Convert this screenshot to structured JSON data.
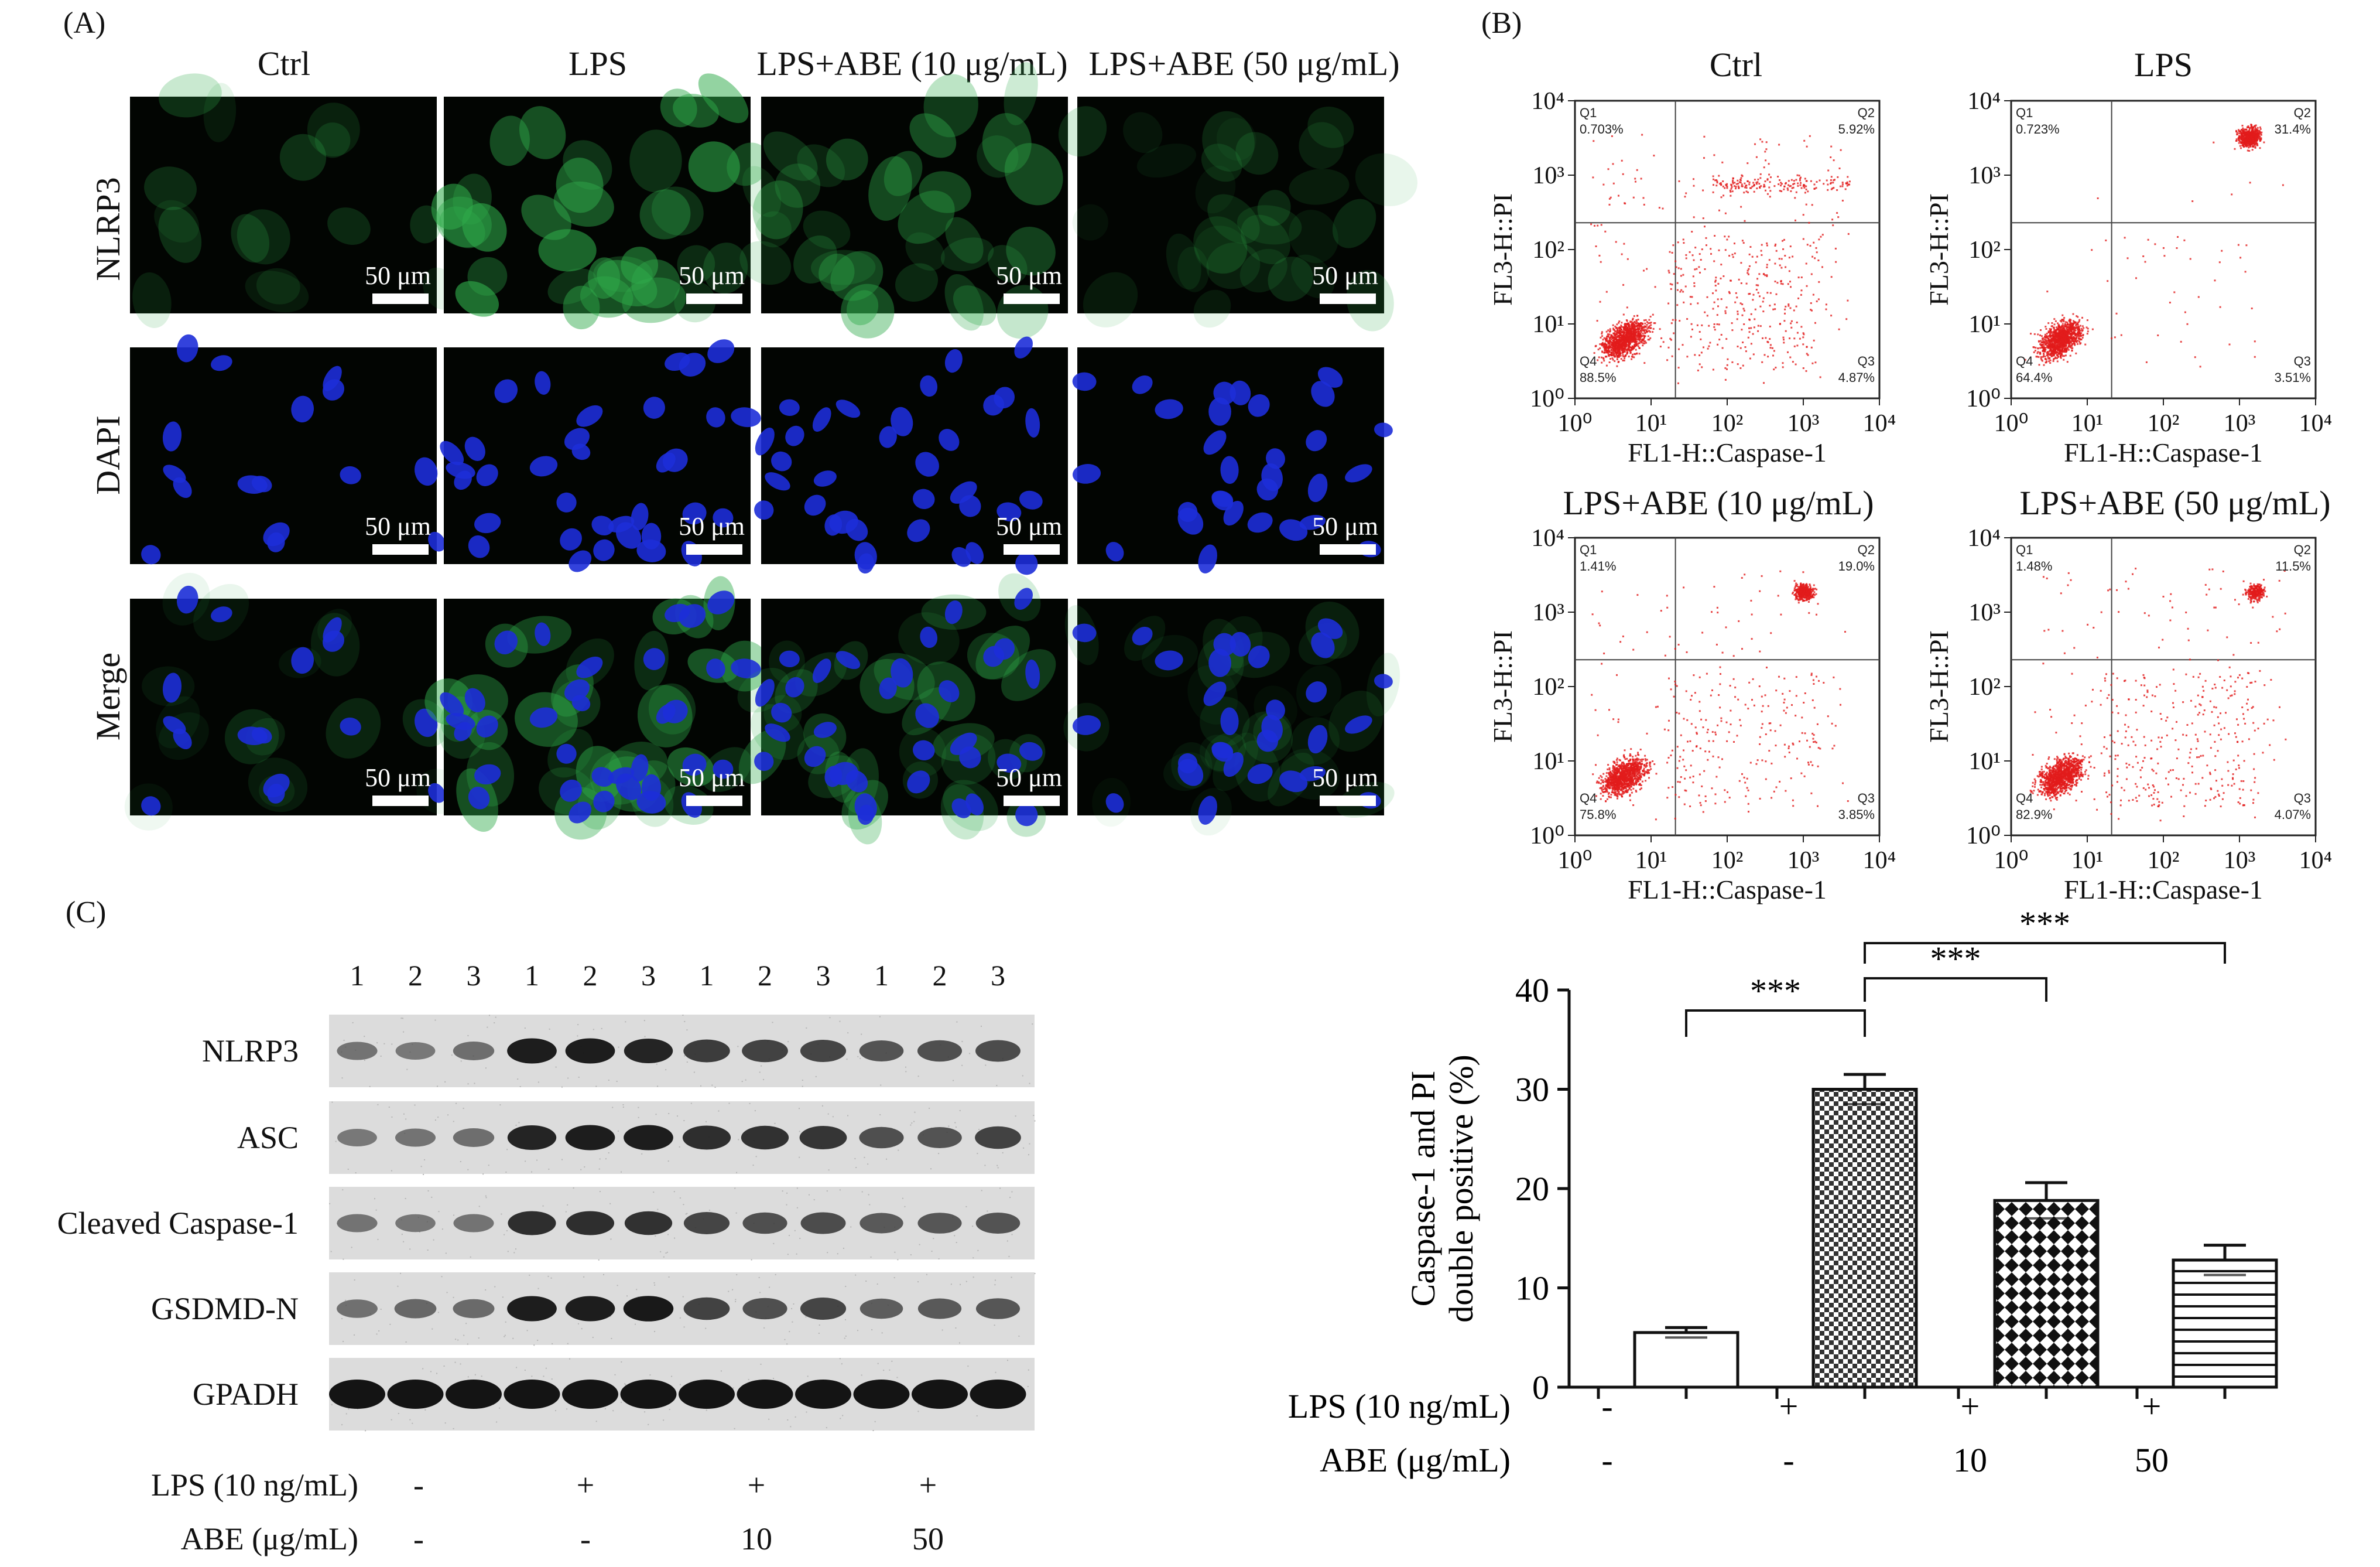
{
  "panel_a": {
    "letter": "(A)",
    "columns": [
      "Ctrl",
      "LPS",
      "LPS+ABE (10 μg/mL)",
      "LPS+ABE (50 μg/mL)"
    ],
    "rows": [
      "NLRP3",
      "DAPI",
      "Merge"
    ],
    "scale_bar": "50 μm",
    "colors": {
      "nlrp3": "#2faa4a",
      "dapi": "#1d2ed8",
      "background": "#020502"
    }
  },
  "panel_b": {
    "letter": "(B)",
    "x_axis_label": "FL1-H::Caspase-1",
    "y_axis_label": "FL3-H::PI",
    "tick_labels": [
      "10⁰",
      "10¹",
      "10²",
      "10³",
      "10⁴"
    ],
    "dot_color": "#e21b1b",
    "plots": [
      {
        "title": "Ctrl",
        "q1": "Q1",
        "q1_val": "0.703%",
        "q2": "Q2",
        "q2_val": "5.92%",
        "q3": "Q3",
        "q3_val": "4.87%",
        "q4": "Q4",
        "q4_val": "88.5%"
      },
      {
        "title": "LPS",
        "q1": "Q1",
        "q1_val": "0.723%",
        "q2": "Q2",
        "q2_val": "31.4%",
        "q3": "Q3",
        "q3_val": "3.51%",
        "q4": "Q4",
        "q4_val": "64.4%"
      },
      {
        "title": "LPS+ABE (10 μg/mL)",
        "q1": "Q1",
        "q1_val": "1.41%",
        "q2": "Q2",
        "q2_val": "19.0%",
        "q3": "Q3",
        "q3_val": "3.85%",
        "q4": "Q4",
        "q4_val": "75.8%"
      },
      {
        "title": "LPS+ABE (50 μg/mL)",
        "q1": "Q1",
        "q1_val": "1.48%",
        "q2": "Q2",
        "q2_val": "11.5%",
        "q3": "Q3",
        "q3_val": "4.07%",
        "q4": "Q4",
        "q4_val": "82.9%"
      }
    ]
  },
  "panel_c": {
    "letter": "(C)",
    "lanes": [
      "1",
      "2",
      "3",
      "1",
      "2",
      "3",
      "1",
      "2",
      "3",
      "1",
      "2",
      "3"
    ],
    "proteins": [
      "NLRP3",
      "ASC",
      "Cleaved Caspase-1",
      "GSDMD-N",
      "GPADH"
    ],
    "band_intensity": [
      [
        0.35,
        0.3,
        0.4,
        0.95,
        0.95,
        0.9,
        0.75,
        0.72,
        0.7,
        0.6,
        0.62,
        0.65
      ],
      [
        0.3,
        0.35,
        0.4,
        0.9,
        0.95,
        0.95,
        0.85,
        0.82,
        0.8,
        0.62,
        0.6,
        0.72
      ],
      [
        0.35,
        0.33,
        0.35,
        0.85,
        0.85,
        0.82,
        0.7,
        0.62,
        0.65,
        0.55,
        0.58,
        0.6
      ],
      [
        0.38,
        0.45,
        0.42,
        0.95,
        0.95,
        0.98,
        0.72,
        0.62,
        0.7,
        0.52,
        0.55,
        0.58
      ],
      [
        1,
        1,
        1,
        1,
        1,
        1,
        1,
        1,
        1,
        1,
        1,
        1
      ]
    ],
    "lps_label": "LPS (10 ng/mL)",
    "abe_label": "ABE (μg/mL)",
    "lps_values": [
      "-",
      "+",
      "+",
      "+"
    ],
    "abe_values": [
      "-",
      "-",
      "10",
      "50"
    ]
  },
  "bar_chart": {
    "ylabel_line1": "Caspase-1 and PI",
    "ylabel_line2": "double positive (%)",
    "lps_label": "LPS (10 ng/mL)",
    "abe_label": "ABE (μg/mL)",
    "lps_values": [
      "-",
      "+",
      "+",
      "+"
    ],
    "abe_values": [
      "-",
      "-",
      "10",
      "50"
    ],
    "significance": "***"
  },
  "chart_data": {
    "type": "bar",
    "categories": [
      "Ctrl",
      "LPS",
      "LPS+ABE 10",
      "LPS+ABE 50"
    ],
    "values": [
      5.5,
      30.0,
      18.8,
      12.8
    ],
    "errors": [
      0.5,
      1.5,
      1.8,
      1.5
    ],
    "ylim": [
      0,
      40
    ],
    "yticks": [
      "0",
      "10",
      "20",
      "30",
      "40"
    ],
    "ylabel": "Caspase-1 and PI double positive (%)",
    "grid": false,
    "comparisons": [
      {
        "from": 0,
        "to": 1,
        "label": "***"
      },
      {
        "from": 1,
        "to": 2,
        "label": "***"
      },
      {
        "from": 1,
        "to": 3,
        "label": "***"
      }
    ]
  }
}
